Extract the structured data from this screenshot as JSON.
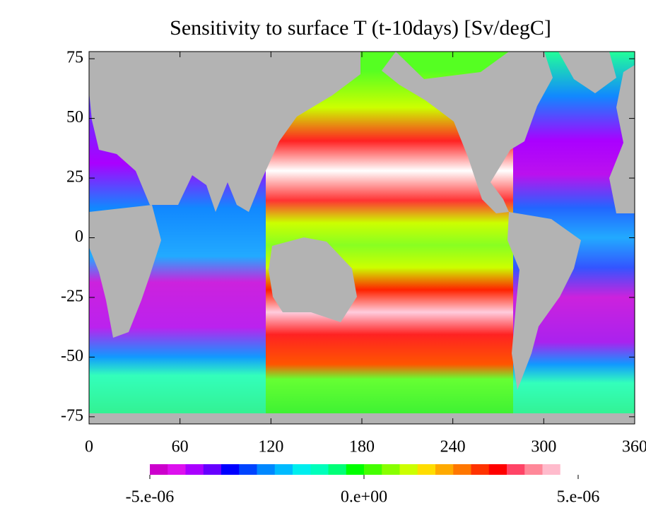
{
  "chart_data": {
    "type": "heatmap",
    "title": "Sensitivity to surface T (t-10days) [Sv/degC]",
    "xlim": [
      0,
      360
    ],
    "ylim": [
      -78,
      78
    ],
    "xticks": [
      0,
      60,
      120,
      180,
      240,
      300,
      360
    ],
    "yticks": [
      -75,
      -50,
      -25,
      0,
      25,
      50,
      75
    ],
    "colorbar": {
      "range": [
        -5e-06,
        5e-06
      ],
      "ticks": [
        {
          "value": -5e-06,
          "label": "-5.e-06"
        },
        {
          "value": 0,
          "label": "0.e+00"
        },
        {
          "value": 5e-06,
          "label": "5.e-06"
        }
      ],
      "colors": [
        "#cc00cc",
        "#dd11ee",
        "#aa00ff",
        "#6600ff",
        "#0000ff",
        "#0044ff",
        "#0088ff",
        "#00bbff",
        "#00eeee",
        "#00ffbb",
        "#00ff77",
        "#00ff00",
        "#44ff00",
        "#88ff00",
        "#ccff00",
        "#ffdd00",
        "#ffaa00",
        "#ff7700",
        "#ff3300",
        "#ff0000",
        "#ff4466",
        "#ff8899",
        "#ffbbcc",
        "#ffffff"
      ]
    }
  }
}
